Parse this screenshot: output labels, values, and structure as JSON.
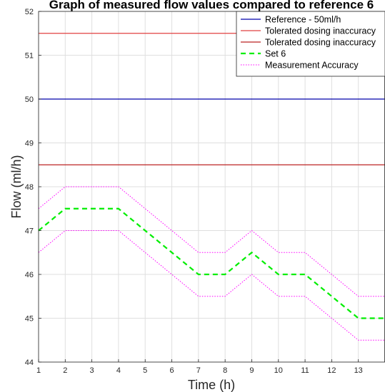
{
  "chart_data": {
    "type": "line",
    "title": "Graph of measured flow values compared to reference 6",
    "xlabel": "Time (h)",
    "ylabel": "Flow (ml/h)",
    "xlim": [
      1,
      14
    ],
    "ylim": [
      44,
      52
    ],
    "x_ticks": [
      "1",
      "2",
      "3",
      "4",
      "5",
      "6",
      "7",
      "8",
      "9",
      "10",
      "11",
      "12",
      "13"
    ],
    "y_ticks": [
      "44",
      "45",
      "46",
      "47",
      "48",
      "49",
      "50",
      "51",
      "52"
    ],
    "grid": true,
    "legend_position": "top-right",
    "x": [
      1,
      2,
      3,
      4,
      5,
      6,
      7,
      8,
      9,
      10,
      11,
      12,
      13,
      14
    ],
    "series": [
      {
        "name": "Reference - 50ml/h",
        "color": "#0000aa",
        "style": "solid",
        "values": [
          50,
          50,
          50,
          50,
          50,
          50,
          50,
          50,
          50,
          50,
          50,
          50,
          50,
          50
        ]
      },
      {
        "name": "Tolerated dosing inaccuracy",
        "color": "#e04040",
        "style": "solid",
        "values": [
          51.5,
          51.5,
          51.5,
          51.5,
          51.5,
          51.5,
          51.5,
          51.5,
          51.5,
          51.5,
          51.5,
          51.5,
          51.5,
          51.5
        ]
      },
      {
        "name": "Tolerated dosing inaccuracy",
        "color": "#bb2222",
        "style": "solid",
        "values": [
          48.5,
          48.5,
          48.5,
          48.5,
          48.5,
          48.5,
          48.5,
          48.5,
          48.5,
          48.5,
          48.5,
          48.5,
          48.5,
          48.5
        ]
      },
      {
        "name": "Set 6",
        "color": "#00ee00",
        "style": "dashed",
        "values": [
          47,
          47.5,
          47.5,
          47.5,
          47,
          46.5,
          46,
          46,
          46.5,
          46,
          46,
          45.5,
          45,
          45
        ]
      },
      {
        "name": "Measurement Accuracy",
        "color": "#ff00ff",
        "style": "dotted",
        "values": [
          47.5,
          48,
          48,
          48,
          47.5,
          47,
          46.5,
          46.5,
          47,
          46.5,
          46.5,
          46,
          45.5,
          45.5
        ]
      },
      {
        "name": "",
        "color": "#ff00ff",
        "style": "dotted",
        "values": [
          46.5,
          47,
          47,
          47,
          46.5,
          46,
          45.5,
          45.5,
          46,
          45.5,
          45.5,
          45,
          44.5,
          44.5
        ]
      }
    ]
  }
}
